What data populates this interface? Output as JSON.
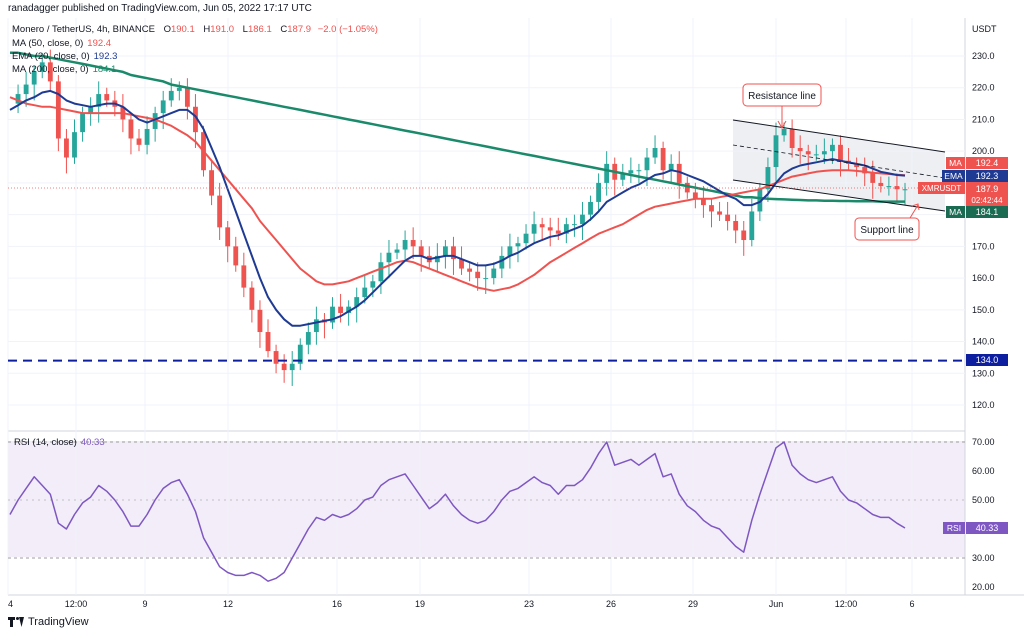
{
  "header": {
    "publisher": "ranadagger published on TradingView.com, Jun 05, 2022 17:17 UTC",
    "symbol": "Monero / TetherUS, 4h, BINANCE",
    "ohlc": {
      "o_label": "O",
      "o": "190.1",
      "h_label": "H",
      "h": "191.0",
      "l_label": "L",
      "l": "186.1",
      "c_label": "C",
      "c": "187.9",
      "change": "−2.0 (−1.05%)"
    }
  },
  "legend": [
    {
      "label": "MA (50, close, 0)",
      "value": "192.4",
      "color": "#ef5350"
    },
    {
      "label": "EMA (20, close, 0)",
      "value": "192.3",
      "color": "#1f3a93"
    },
    {
      "label": "MA (200, close, 0)",
      "value": "184.1",
      "color": "#1b8a6b"
    }
  ],
  "rsi_legend": {
    "label": "RSI (14, close)",
    "value": "40.33",
    "color": "#7e57c2"
  },
  "footer": {
    "brand": "TradingView"
  },
  "price_axis": {
    "unit": "USDT",
    "ticks": [
      "230.0",
      "220.0",
      "210.0",
      "200.0",
      "190.0",
      "180.0",
      "170.0",
      "160.0",
      "150.0",
      "140.0",
      "130.0",
      "120.0"
    ]
  },
  "rsi_axis": {
    "ticks": [
      "70.00",
      "60.00",
      "50.00",
      "40.00",
      "30.00",
      "20.00"
    ]
  },
  "time_axis": {
    "ticks": [
      "4",
      "12:00",
      "9",
      "12",
      "16",
      "19",
      "23",
      "26",
      "29",
      "Jun",
      "12:00",
      "6"
    ]
  },
  "badges": {
    "ma": {
      "label": "MA",
      "value": "192.4"
    },
    "ema": {
      "label": "EMA",
      "value": "192.3"
    },
    "last": {
      "label": "XMRUSDT",
      "value": "187.9",
      "countdown": "02:42:44"
    },
    "ma200": {
      "label": "MA",
      "value": "184.1"
    },
    "support": {
      "value": "134.0"
    },
    "rsi": {
      "label": "RSI",
      "value": "40.33"
    }
  },
  "annotations": {
    "resistance": "Resistance line",
    "support": "Support line"
  },
  "colors": {
    "up": "#26a69a",
    "down": "#ef5350",
    "ma50": "#ef5350",
    "ema20": "#1f3a93",
    "ma200": "#1b8a6b",
    "rsi": "#7e57c2",
    "support_line": "#0d1f9e"
  },
  "chart_data": {
    "type": "line",
    "symbol": "XMRUSDT",
    "x_ticks": [
      "4",
      "12:00",
      "9",
      "12",
      "16",
      "19",
      "23",
      "26",
      "29",
      "Jun",
      "12:00",
      "6"
    ],
    "price_range": [
      115,
      236
    ],
    "rsi_range": [
      18,
      73
    ],
    "support_level": 134.0,
    "close": [
      215,
      218,
      221,
      225,
      228,
      222,
      204,
      198,
      206,
      212,
      214,
      218,
      216,
      214,
      210,
      204,
      202,
      207,
      212,
      216,
      219,
      220,
      214,
      206,
      194,
      186,
      176,
      170,
      164,
      157,
      150,
      143,
      137,
      133,
      131,
      133,
      139,
      143,
      147,
      146,
      151,
      149,
      151,
      154,
      157,
      159,
      165,
      168,
      169,
      172,
      170,
      167,
      165,
      167,
      170,
      166,
      163,
      162,
      160,
      160,
      163,
      167,
      170,
      171,
      174,
      177,
      176,
      175,
      174,
      177,
      177,
      180,
      184,
      190,
      196,
      191,
      193,
      194,
      194,
      198,
      201,
      194,
      196,
      190,
      187,
      185,
      183,
      181,
      180,
      178,
      175,
      172,
      181,
      188,
      195,
      205,
      207,
      201,
      200,
      199,
      199,
      200,
      202,
      197,
      196,
      195,
      193,
      190,
      189,
      189,
      188,
      188
    ],
    "ema20": [
      213,
      214.5,
      216,
      217,
      218.5,
      219,
      218,
      216,
      215,
      214.5,
      214,
      214.5,
      215,
      215,
      214,
      212,
      210,
      209,
      210,
      211,
      212,
      213,
      213,
      211,
      207,
      201,
      195,
      188,
      181,
      174,
      167,
      160,
      154,
      150,
      147,
      145,
      145,
      145.5,
      146,
      146.5,
      147,
      148,
      149.5,
      151,
      153,
      155.5,
      158,
      160.5,
      163,
      165.5,
      167,
      167,
      166,
      166.5,
      167,
      167,
      166,
      165,
      164,
      164,
      164.5,
      165.5,
      167,
      168,
      169.5,
      171,
      172,
      173,
      173.5,
      174.5,
      175.5,
      176.5,
      178.5,
      181,
      184,
      185.5,
      187,
      188.5,
      189.5,
      191,
      192.5,
      193,
      194,
      193.5,
      192.5,
      191.5,
      190.5,
      189,
      187.5,
      186,
      185,
      183,
      183,
      184,
      186.5,
      190,
      193,
      194.5,
      195.5,
      196,
      196.5,
      197,
      197.5,
      197,
      196.5,
      196,
      195.5,
      194.5,
      193.5,
      193,
      192.5,
      192.3
    ],
    "ma50": [
      217,
      216,
      215,
      214.5,
      214,
      214,
      213.5,
      213,
      212.5,
      212,
      212,
      212,
      212,
      212,
      212,
      211.5,
      211,
      210.5,
      210,
      209,
      208,
      206.5,
      205,
      203,
      200,
      197,
      194,
      191,
      188,
      185,
      182,
      178,
      175,
      172,
      169,
      166,
      163,
      161,
      159,
      158,
      158,
      158.5,
      159,
      160,
      161,
      162,
      163,
      164,
      165,
      165.5,
      165,
      164,
      163,
      162,
      161,
      160,
      159,
      158,
      157,
      156.5,
      156,
      156.5,
      157,
      158,
      159.5,
      161,
      163,
      165,
      166.5,
      168,
      169.5,
      171,
      172.5,
      174,
      175,
      176,
      177,
      178.5,
      180,
      181.5,
      182.5,
      183,
      183.5,
      184,
      184.5,
      185,
      185,
      185,
      185.5,
      186,
      186.5,
      187,
      187.5,
      188,
      189,
      190,
      191,
      192,
      192.5,
      193,
      193.5,
      193.8,
      194,
      194,
      194,
      193.8,
      193.5,
      193.2,
      193,
      192.8,
      192.6,
      192.4
    ],
    "ma200": [
      231,
      231,
      230.5,
      230,
      230,
      229.5,
      229,
      228.5,
      228,
      227.5,
      227,
      226.5,
      226,
      225.5,
      225,
      224,
      223.5,
      223,
      222.5,
      222,
      221,
      220.5,
      220,
      219.5,
      219,
      218.5,
      218,
      217.5,
      217,
      216.5,
      216,
      215.5,
      215,
      214.5,
      214,
      213.5,
      213,
      212.5,
      212,
      211.5,
      211,
      210.5,
      210,
      209.5,
      209,
      208.5,
      208,
      207.5,
      207,
      206.5,
      206,
      205.5,
      205,
      204.5,
      204,
      203.5,
      203,
      202.5,
      202,
      201.5,
      201,
      200.5,
      200,
      199.5,
      199,
      198.5,
      198,
      197.5,
      197,
      196.5,
      196,
      195.5,
      195,
      194.5,
      194,
      193.5,
      193,
      192.5,
      192,
      191.5,
      191,
      190.5,
      190,
      189.5,
      189,
      188.5,
      188,
      187.5,
      187,
      186.5,
      186,
      185.5,
      185.5,
      185.2,
      185,
      184.9,
      184.8,
      184.7,
      184.6,
      184.5,
      184.5,
      184.4,
      184.4,
      184.3,
      184.3,
      184.2,
      184.2,
      184.2,
      184.1,
      184.1,
      184.1,
      184.1
    ],
    "rsi": [
      45,
      50,
      54,
      58,
      55,
      52,
      42,
      40,
      45,
      49,
      51,
      55,
      53,
      50,
      46,
      41,
      41,
      45,
      50,
      54,
      56,
      57,
      52,
      46,
      37,
      32,
      27,
      25,
      24,
      24,
      25,
      24,
      22,
      23,
      25,
      30,
      35,
      40,
      44,
      43,
      45,
      44,
      45,
      47,
      50,
      51,
      55,
      57,
      58,
      59,
      55,
      51,
      47,
      49,
      52,
      48,
      45,
      43,
      42,
      43,
      46,
      50,
      53,
      54,
      56,
      58,
      56,
      55,
      52,
      55,
      55,
      57,
      61,
      66,
      70,
      62,
      63,
      64,
      62,
      64,
      66,
      58,
      59,
      52,
      48,
      46,
      43,
      41,
      40,
      37,
      34,
      32,
      43,
      52,
      60,
      68,
      70,
      62,
      59,
      57,
      56,
      57,
      58,
      53,
      50,
      49,
      47,
      45,
      44,
      44,
      42,
      40.33
    ]
  }
}
